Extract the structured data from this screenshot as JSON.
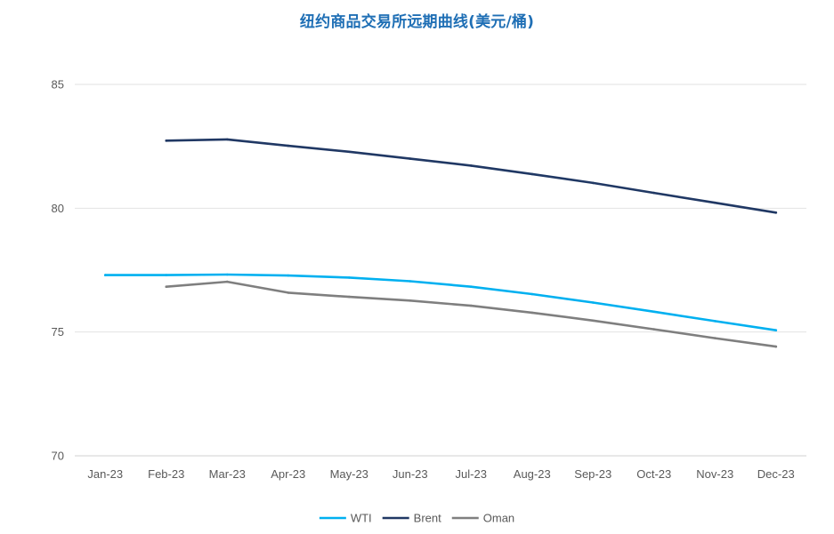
{
  "chart_data": {
    "type": "line",
    "title": "纽约商品交易所远期曲线(美元/桶)",
    "xlabel": "",
    "ylabel": "",
    "categories": [
      "Jan-23",
      "Feb-23",
      "Mar-23",
      "Apr-23",
      "May-23",
      "Jun-23",
      "Jul-23",
      "Aug-23",
      "Sep-23",
      "Oct-23",
      "Nov-23",
      "Dec-23"
    ],
    "ylim": [
      70,
      85
    ],
    "yticks": [
      70,
      75,
      80,
      85
    ],
    "grid": true,
    "legend_position": "bottom",
    "series": [
      {
        "name": "WTI",
        "color": "#00b0f0",
        "values": [
          77.3,
          77.3,
          77.32,
          77.28,
          77.2,
          77.05,
          76.83,
          76.53,
          76.19,
          75.82,
          75.44,
          75.07
        ]
      },
      {
        "name": "Brent",
        "color": "#203864",
        "values": [
          null,
          82.73,
          82.78,
          82.52,
          82.28,
          82.0,
          81.72,
          81.38,
          81.02,
          80.62,
          80.22,
          79.82
        ]
      },
      {
        "name": "Oman",
        "color": "#7f7f7f",
        "values": [
          null,
          76.83,
          77.03,
          76.59,
          76.42,
          76.27,
          76.06,
          75.78,
          75.46,
          75.11,
          74.75,
          74.41
        ]
      }
    ]
  }
}
